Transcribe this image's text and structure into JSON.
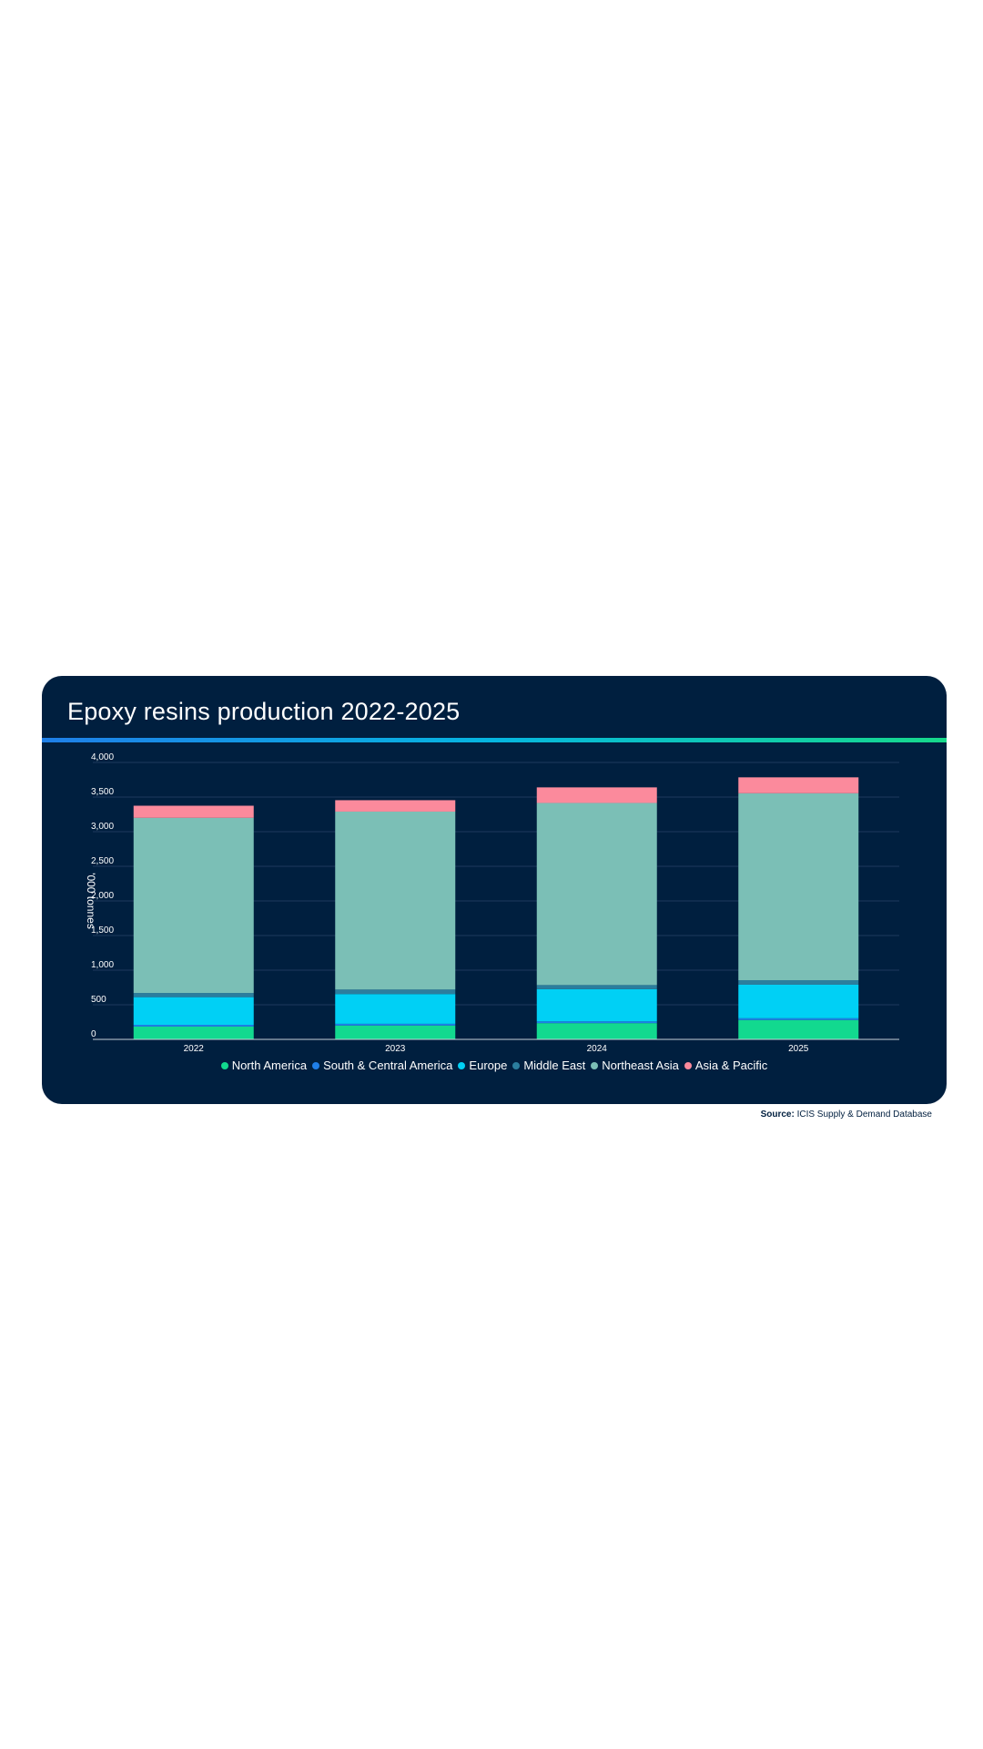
{
  "title": "Epoxy resins production 2022-2025",
  "source_label": "Source:",
  "source_text": "ICIS Supply & Demand Database",
  "colors": {
    "background": "#001f3f",
    "gridline": "#1e3a5c",
    "axis": "#c7cfd9"
  },
  "chart_data": {
    "type": "bar",
    "stacked": true,
    "categories": [
      "2022",
      "2023",
      "2024",
      "2025"
    ],
    "ylabel": "'000 tonnes",
    "ylim": [
      0,
      4000
    ],
    "yticks": [
      0,
      500,
      1000,
      1500,
      2000,
      2500,
      3000,
      3500,
      4000
    ],
    "ytick_labels": [
      "0",
      "500",
      "1,000",
      "1,500",
      "2,000",
      "2,500",
      "3,000",
      "3,500",
      "4,000"
    ],
    "grid": true,
    "legend_position": "bottom-center",
    "series": [
      {
        "name": "North America",
        "color": "#12d98f",
        "values": [
          185,
          200,
          235,
          280
        ]
      },
      {
        "name": "South & Central America",
        "color": "#1f7fe8",
        "values": [
          25,
          25,
          25,
          25
        ]
      },
      {
        "name": "Europe",
        "color": "#00d0f5",
        "values": [
          400,
          430,
          465,
          485
        ]
      },
      {
        "name": "Middle East",
        "color": "#2b7e9e",
        "values": [
          60,
          65,
          60,
          65
        ]
      },
      {
        "name": "Northeast Asia",
        "color": "#7bbfb6",
        "values": [
          2530,
          2570,
          2630,
          2700
        ]
      },
      {
        "name": "Asia & Pacific",
        "color": "#fb8a9c",
        "values": [
          175,
          165,
          225,
          230
        ]
      }
    ]
  }
}
